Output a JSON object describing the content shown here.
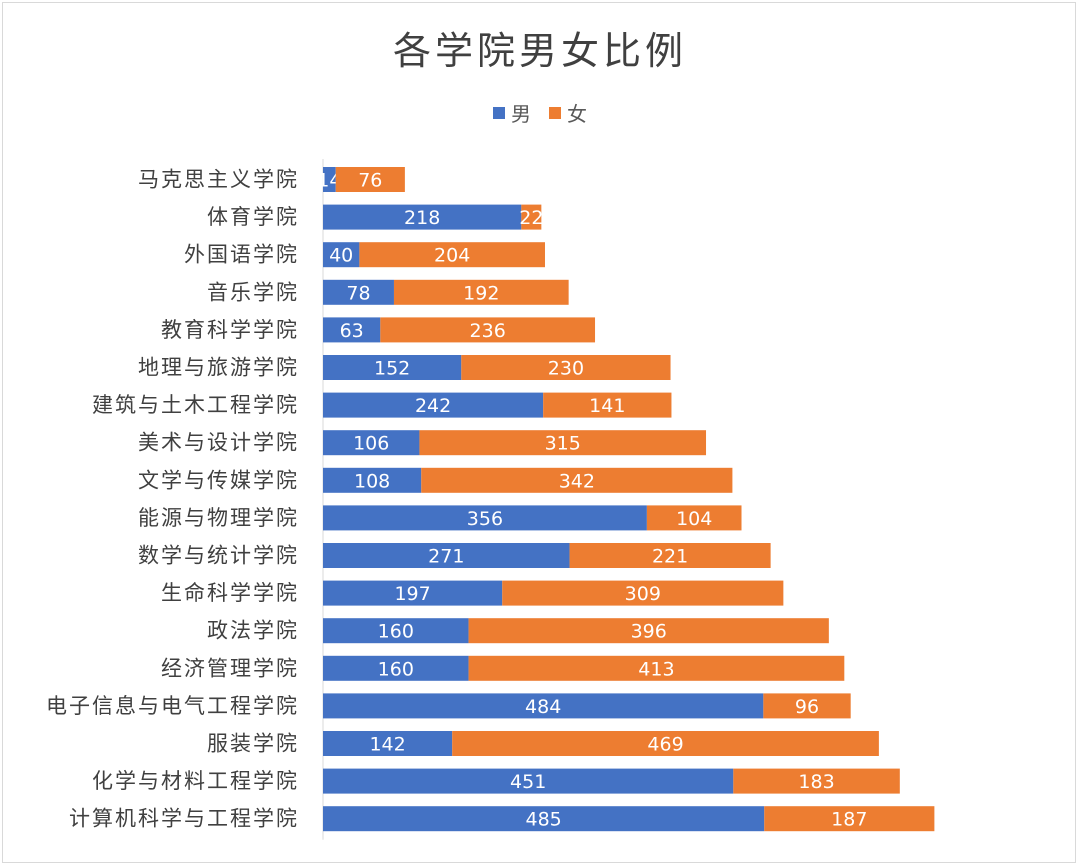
{
  "chart_data": {
    "type": "bar",
    "orientation": "horizontal",
    "stacked": true,
    "title": "各学院男女比例",
    "legend_position": "top",
    "grid": false,
    "categories": [
      "马克思主义学院",
      "体育学院",
      "外国语学院",
      "音乐学院",
      "教育科学学院",
      "地理与旅游学院",
      "建筑与土木工程学院",
      "美术与设计学院",
      "文学与传媒学院",
      "能源与物理学院",
      "数学与统计学院",
      "生命科学学院",
      "政法学院",
      "经济管理学院",
      "电子信息与电气工程学院",
      "服装学院",
      "化学与材料工程学院",
      "计算机科学与工程学院"
    ],
    "series": [
      {
        "name": "男",
        "color": "#4472c4",
        "values": [
          14,
          218,
          40,
          78,
          63,
          152,
          242,
          106,
          108,
          356,
          271,
          197,
          160,
          160,
          484,
          142,
          451,
          485
        ]
      },
      {
        "name": "女",
        "color": "#ed7d31",
        "values": [
          76,
          22,
          204,
          192,
          236,
          230,
          141,
          315,
          342,
          104,
          221,
          309,
          396,
          413,
          96,
          469,
          183,
          187
        ]
      }
    ]
  }
}
